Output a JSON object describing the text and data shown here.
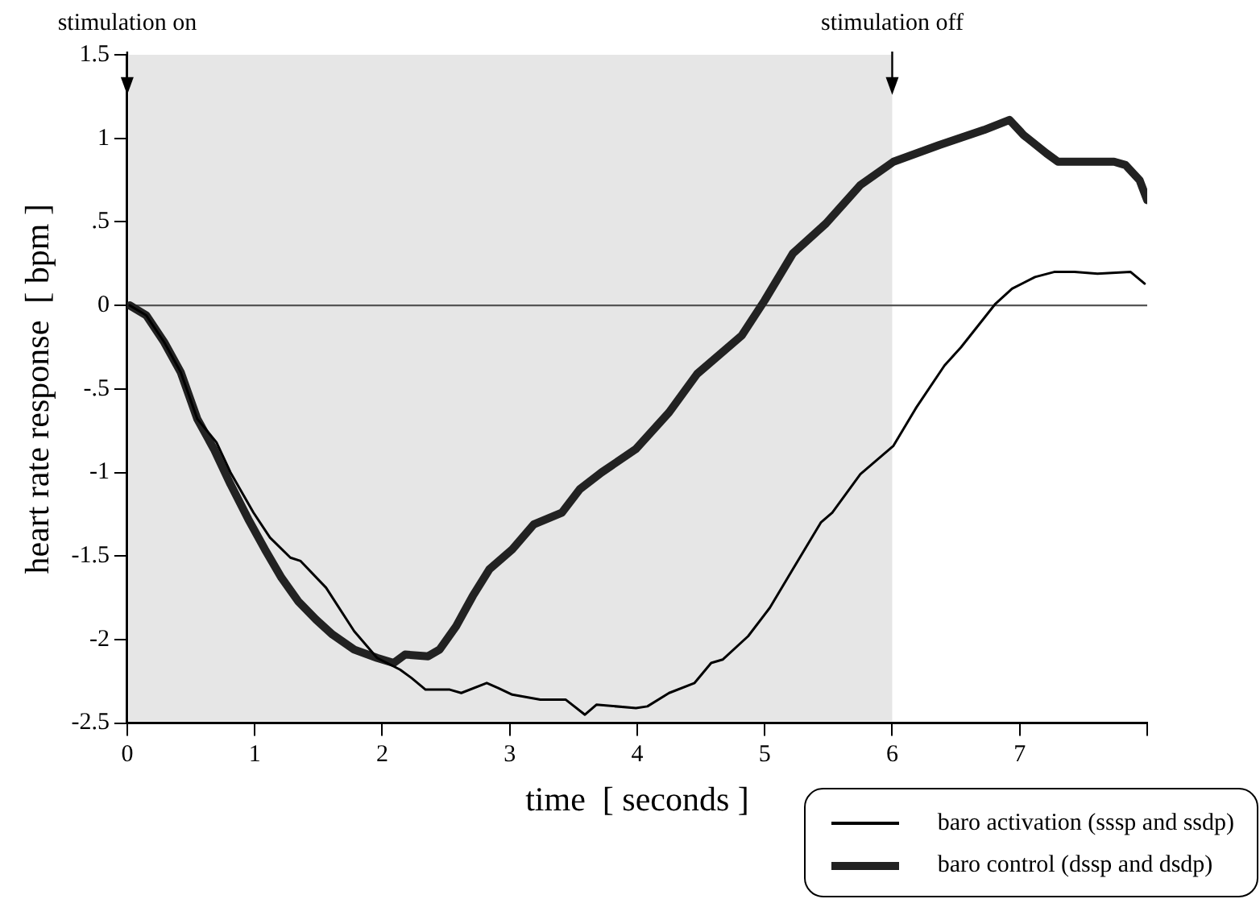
{
  "chart_data": {
    "type": "line",
    "xlabel": "time  [ seconds ]",
    "ylabel": "heart rate response  [ bpm ]",
    "xlim": [
      0,
      8
    ],
    "xticks": [
      0,
      1,
      2,
      3,
      4,
      5,
      6,
      7,
      {
        "value": 8,
        "label": null
      }
    ],
    "ylim": [
      -2.5,
      1.5
    ],
    "yticks": [
      -2.5,
      -2,
      -1.5,
      -1,
      {
        "value": -0.5,
        "label": "-.5"
      },
      0,
      {
        "value": 0.5,
        "label": ".5"
      },
      1,
      1.5
    ],
    "grid": false,
    "legend": "bottom right",
    "marker": "none",
    "line_style": "solid",
    "series": [
      {
        "name": "baro activation (sssp and ssdp)",
        "color": "#000000",
        "x": [
          0.02,
          0.15,
          0.29,
          0.42,
          0.55,
          0.7,
          0.81,
          0.99,
          1.12,
          1.28,
          1.36,
          1.56,
          1.78,
          1.96,
          2.14,
          2.23,
          2.34,
          2.53,
          2.62,
          2.82,
          2.91,
          3.02,
          3.24,
          3.44,
          3.59,
          3.68,
          3.99,
          4.08,
          4.25,
          4.45,
          4.58,
          4.67,
          4.87,
          5.04,
          5.22,
          5.44,
          5.53,
          5.75,
          6.01,
          6.19,
          6.41,
          6.54,
          6.81,
          6.94,
          7.12,
          7.27,
          7.43,
          7.61,
          7.87,
          7.98
        ],
        "values": [
          0,
          -0.06,
          -0.22,
          -0.4,
          -0.68,
          -0.82,
          -1.0,
          -1.24,
          -1.39,
          -1.51,
          -1.53,
          -1.69,
          -1.95,
          -2.11,
          -2.18,
          -2.23,
          -2.3,
          -2.3,
          -2.32,
          -2.26,
          -2.29,
          -2.33,
          -2.36,
          -2.36,
          -2.45,
          -2.39,
          -2.41,
          -2.4,
          -2.32,
          -2.26,
          -2.14,
          -2.12,
          -1.98,
          -1.81,
          -1.58,
          -1.3,
          -1.24,
          -1.01,
          -0.84,
          -0.61,
          -0.36,
          -0.25,
          0.01,
          0.1,
          0.17,
          0.2,
          0.2,
          0.19,
          0.2,
          0.13
        ]
      },
      {
        "name": "baro control (dssp and dsdp)",
        "color": "#222222",
        "x": [
          0.02,
          0.15,
          0.29,
          0.42,
          0.55,
          0.68,
          0.81,
          0.95,
          1.08,
          1.21,
          1.34,
          1.48,
          1.61,
          1.78,
          1.96,
          2.09,
          2.18,
          2.36,
          2.45,
          2.58,
          2.71,
          2.84,
          3.02,
          3.19,
          3.41,
          3.55,
          3.72,
          3.99,
          4.25,
          4.47,
          4.82,
          5.0,
          5.22,
          5.48,
          5.75,
          6.01,
          6.37,
          6.72,
          6.92,
          7.03,
          7.21,
          7.3,
          7.74,
          7.83,
          7.94,
          8.0
        ],
        "values": [
          0,
          -0.06,
          -0.22,
          -0.4,
          -0.68,
          -0.86,
          -1.07,
          -1.28,
          -1.46,
          -1.63,
          -1.77,
          -1.88,
          -1.97,
          -2.06,
          -2.11,
          -2.14,
          -2.09,
          -2.1,
          -2.06,
          -1.92,
          -1.74,
          -1.58,
          -1.46,
          -1.31,
          -1.24,
          -1.1,
          -1.0,
          -0.86,
          -0.64,
          -0.41,
          -0.18,
          0.03,
          0.31,
          0.49,
          0.72,
          0.86,
          0.96,
          1.05,
          1.11,
          1.02,
          0.91,
          0.86,
          0.86,
          0.84,
          0.75,
          0.63
        ]
      }
    ],
    "ref_lines": [
      {
        "axis": "y",
        "value": 0,
        "color": "#555555"
      }
    ],
    "bands": [
      {
        "axis": "x",
        "from": 0,
        "to": 6,
        "color": "#e6e6e6"
      }
    ],
    "annotations": [
      {
        "text": "stimulation on",
        "x": 0,
        "y": 1.26
      },
      {
        "text": "stimulation off",
        "x": 6,
        "y": 1.26
      }
    ]
  }
}
